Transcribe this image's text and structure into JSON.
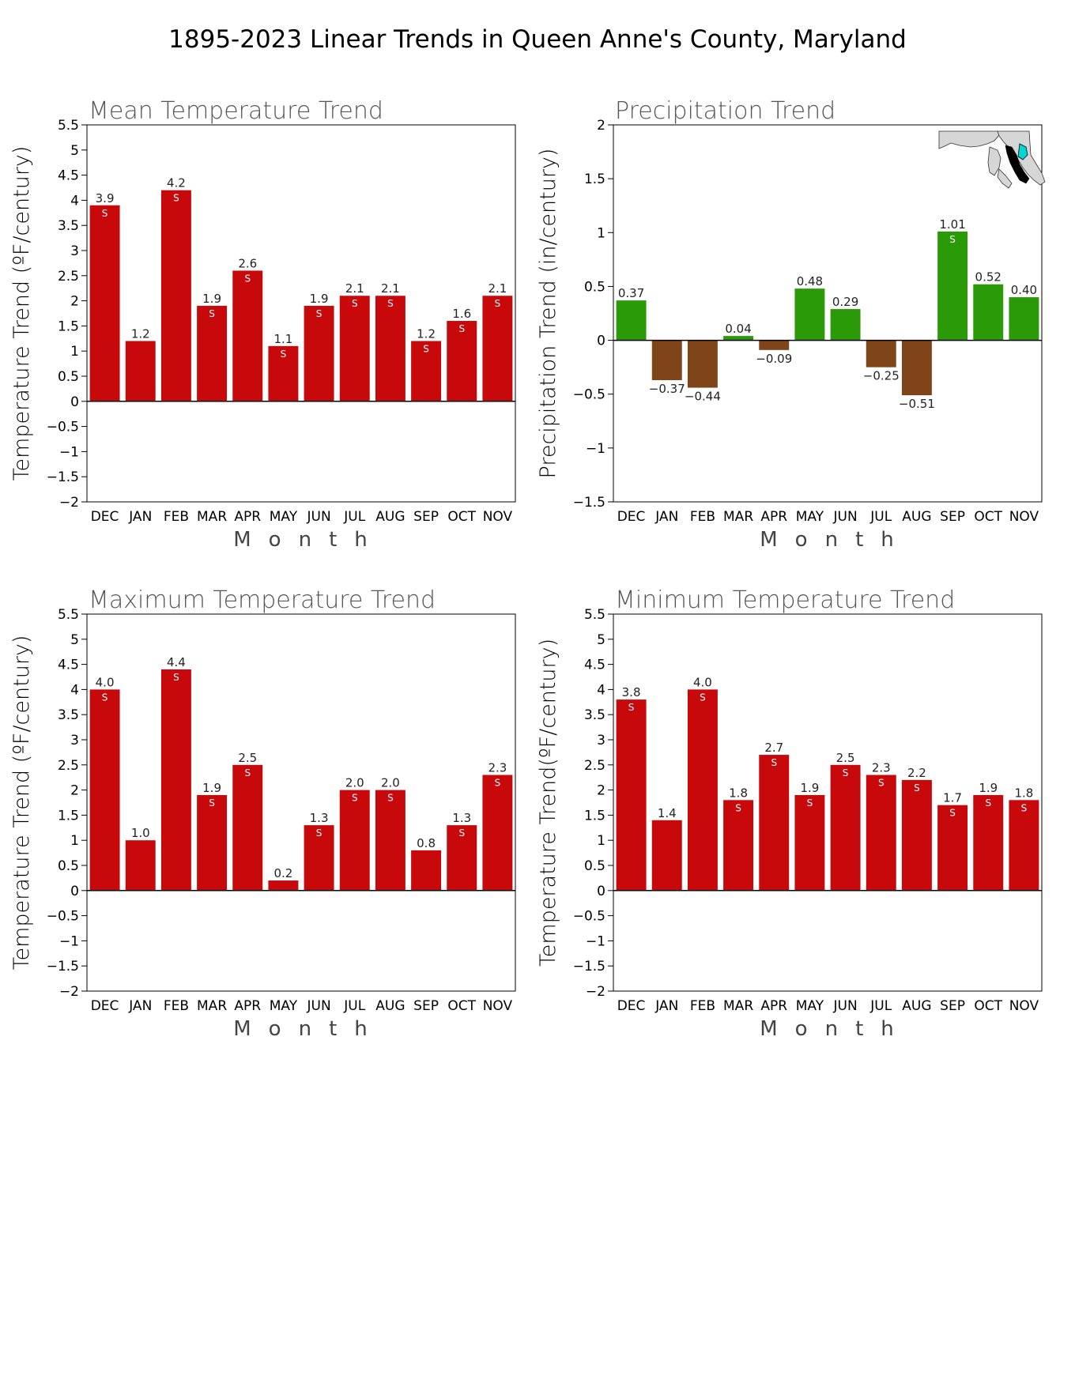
{
  "title": "1895-2023 Linear Trends in Queen Anne's County, Maryland",
  "colors": {
    "temperature": "#c8090c",
    "precip_positive": "#2a9a09",
    "precip_negative": "#7f4519",
    "significance_text": "#ffffff"
  },
  "chart_data": [
    {
      "type": "bar",
      "title": "Mean Temperature Trend",
      "xlabel": "Month",
      "ylabel": "Temperature Trend (ºF/century)",
      "categories": [
        "DEC",
        "JAN",
        "FEB",
        "MAR",
        "APR",
        "MAY",
        "JUN",
        "JUL",
        "AUG",
        "SEP",
        "OCT",
        "NOV"
      ],
      "values": [
        3.9,
        1.2,
        4.2,
        1.9,
        2.6,
        1.1,
        1.9,
        2.1,
        2.1,
        1.2,
        1.6,
        2.1
      ],
      "value_labels": [
        "3.9",
        "1.2",
        "4.2",
        "1.9",
        "2.6",
        "1.1",
        "1.9",
        "2.1",
        "2.1",
        "1.2",
        "1.6",
        "2.1"
      ],
      "significance": [
        "S",
        "",
        "S",
        "S",
        "S",
        "S",
        "S",
        "S",
        "S",
        "S",
        "S",
        "S"
      ],
      "ylim": [
        -2,
        5.5
      ],
      "yticks": [
        -2,
        -1.5,
        -1,
        -0.5,
        0,
        0.5,
        1,
        1.5,
        2,
        2.5,
        3,
        3.5,
        4,
        4.5,
        5,
        5.5
      ],
      "ytick_labels": [
        "−2",
        "−1.5",
        "−1",
        "−0.5",
        "0",
        "0.5",
        "1",
        "1.5",
        "2",
        "2.5",
        "3",
        "3.5",
        "4",
        "4.5",
        "5",
        "5.5"
      ],
      "bar_color": "#c8090c"
    },
    {
      "type": "bar",
      "title": "Precipitation Trend",
      "xlabel": "Month",
      "ylabel": "Precipitation Trend (in/century)",
      "categories": [
        "DEC",
        "JAN",
        "FEB",
        "MAR",
        "APR",
        "MAY",
        "JUN",
        "JUL",
        "AUG",
        "SEP",
        "OCT",
        "NOV"
      ],
      "values": [
        0.37,
        -0.37,
        -0.44,
        0.04,
        -0.09,
        0.48,
        0.29,
        -0.25,
        -0.51,
        1.01,
        0.52,
        0.4
      ],
      "value_labels": [
        "0.37",
        "−0.37",
        "−0.44",
        "0.04",
        "−0.09",
        "0.48",
        "0.29",
        "−0.25",
        "−0.51",
        "1.01",
        "0.52",
        "0.40"
      ],
      "significance": [
        "",
        "",
        "",
        "",
        "",
        "",
        "",
        "",
        "",
        "S",
        "",
        ""
      ],
      "ylim": [
        -1.5,
        2
      ],
      "yticks": [
        -1.5,
        -1,
        -0.5,
        0,
        0.5,
        1,
        1.5,
        2
      ],
      "ytick_labels": [
        "−1.5",
        "−1",
        "−0.5",
        "0",
        "0.5",
        "1",
        "1.5",
        "2"
      ],
      "bar_color_positive": "#2a9a09",
      "bar_color_negative": "#7f4519",
      "inset": "maryland-county-map"
    },
    {
      "type": "bar",
      "title": "Maximum Temperature Trend",
      "xlabel": "Month",
      "ylabel": "Temperature Trend (ºF/century)",
      "categories": [
        "DEC",
        "JAN",
        "FEB",
        "MAR",
        "APR",
        "MAY",
        "JUN",
        "JUL",
        "AUG",
        "SEP",
        "OCT",
        "NOV"
      ],
      "values": [
        4.0,
        1.0,
        4.4,
        1.9,
        2.5,
        0.2,
        1.3,
        2.0,
        2.0,
        0.8,
        1.3,
        2.3
      ],
      "value_labels": [
        "4.0",
        "1.0",
        "4.4",
        "1.9",
        "2.5",
        "0.2",
        "1.3",
        "2.0",
        "2.0",
        "0.8",
        "1.3",
        "2.3"
      ],
      "significance": [
        "S",
        "",
        "S",
        "S",
        "S",
        "",
        "S",
        "S",
        "S",
        "",
        "S",
        "S"
      ],
      "ylim": [
        -2,
        5.5
      ],
      "yticks": [
        -2,
        -1.5,
        -1,
        -0.5,
        0,
        0.5,
        1,
        1.5,
        2,
        2.5,
        3,
        3.5,
        4,
        4.5,
        5,
        5.5
      ],
      "ytick_labels": [
        "−2",
        "−1.5",
        "−1",
        "−0.5",
        "0",
        "0.5",
        "1",
        "1.5",
        "2",
        "2.5",
        "3",
        "3.5",
        "4",
        "4.5",
        "5",
        "5.5"
      ],
      "bar_color": "#c8090c"
    },
    {
      "type": "bar",
      "title": "Minimum Temperature Trend",
      "xlabel": "Month",
      "ylabel": "Temperature Trend(ºF/century)",
      "categories": [
        "DEC",
        "JAN",
        "FEB",
        "MAR",
        "APR",
        "MAY",
        "JUN",
        "JUL",
        "AUG",
        "SEP",
        "OCT",
        "NOV"
      ],
      "values": [
        3.8,
        1.4,
        4.0,
        1.8,
        2.7,
        1.9,
        2.5,
        2.3,
        2.2,
        1.7,
        1.9,
        1.8
      ],
      "value_labels": [
        "3.8",
        "1.4",
        "4.0",
        "1.8",
        "2.7",
        "1.9",
        "2.5",
        "2.3",
        "2.2",
        "1.7",
        "1.9",
        "1.8"
      ],
      "significance": [
        "S",
        "",
        "S",
        "S",
        "S",
        "S",
        "S",
        "S",
        "S",
        "S",
        "S",
        "S"
      ],
      "ylim": [
        -2,
        5.5
      ],
      "yticks": [
        -2,
        -1.5,
        -1,
        -0.5,
        0,
        0.5,
        1,
        1.5,
        2,
        2.5,
        3,
        3.5,
        4,
        4.5,
        5,
        5.5
      ],
      "ytick_labels": [
        "−2",
        "−1.5",
        "−1",
        "−0.5",
        "0",
        "0.5",
        "1",
        "1.5",
        "2",
        "2.5",
        "3",
        "3.5",
        "4",
        "4.5",
        "5",
        "5.5"
      ],
      "bar_color": "#c8090c"
    }
  ]
}
